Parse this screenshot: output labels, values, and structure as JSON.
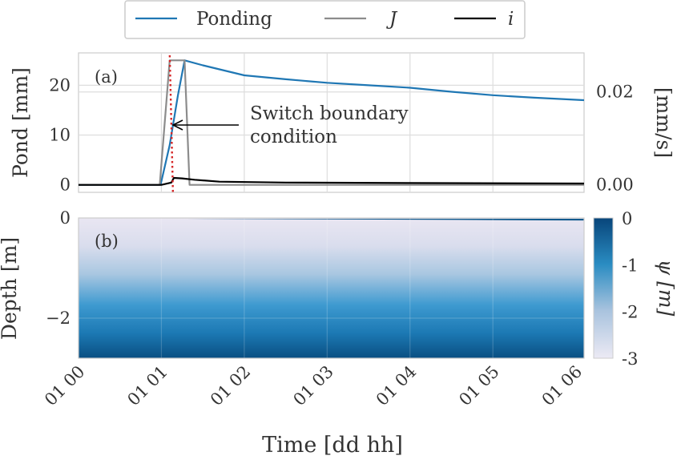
{
  "chart_data": [
    {
      "panel": "(a)",
      "type": "line",
      "ylabel": "Pond [mm]",
      "ylabel_right": "[mm/s]",
      "ylim": [
        -1.5,
        26.5
      ],
      "y2lim": [
        -0.0016,
        0.0284
      ],
      "yticks": [
        0,
        10,
        20
      ],
      "y2ticks": [
        "0.00",
        "0.02"
      ],
      "grid": true,
      "legend": {
        "placement": "top-center"
      },
      "annotation": {
        "line1": "Switch boundary",
        "line2": "condition",
        "x": 1.2,
        "y": 12
      },
      "switch_time_hours": 1.12,
      "series": [
        {
          "name": "Ponding",
          "color": "#1f77b4",
          "axis": "left",
          "x": [
            0.0,
            0.99,
            1.1,
            1.2,
            1.28,
            1.5,
            2.0,
            2.5,
            3.0,
            3.5,
            4.0,
            4.5,
            5.0,
            5.5,
            6.1
          ],
          "y": [
            0,
            0,
            8,
            18,
            25,
            24,
            22,
            21.2,
            20.5,
            20,
            19.5,
            18.7,
            18.0,
            17.5,
            17.0
          ]
        },
        {
          "name": "J",
          "color": "#8c8c8c",
          "axis": "left",
          "x": [
            0.0,
            0.98,
            1.1,
            1.22,
            1.28,
            1.34,
            6.1
          ],
          "y": [
            0,
            0,
            25,
            25,
            25,
            0,
            0
          ]
        },
        {
          "name": "i",
          "color": "#000000",
          "axis": "right",
          "x": [
            0.0,
            1.0,
            1.12,
            1.15,
            1.25,
            1.4,
            1.7,
            2.5,
            4.0,
            6.1
          ],
          "y": [
            0,
            0,
            0.0005,
            0.0015,
            0.0014,
            0.0011,
            0.0007,
            0.0005,
            0.0004,
            0.0003
          ]
        }
      ]
    },
    {
      "panel": "(b)",
      "type": "heatmap",
      "ylabel": "Depth [m]",
      "xlabel": "Time [dd hh]",
      "ylim": [
        -2.8,
        0
      ],
      "yticks": [
        0,
        -2
      ],
      "xticks": [
        "01 00",
        "01 01",
        "01 02",
        "01 03",
        "01 04",
        "01 05",
        "01 06"
      ],
      "xlim_hours": [
        0,
        6.1
      ],
      "colorbar": {
        "label": "ψ [m]",
        "ticks": [
          "0",
          "-1",
          "-2",
          "-3"
        ],
        "range": [
          -3,
          0
        ]
      },
      "rows_top_to_bottom": {
        "depth": [
          0,
          -0.3,
          -0.6,
          -1.0,
          -1.4,
          -1.8,
          -2.2,
          -2.5,
          -2.8
        ],
        "psi": [
          -2.95,
          -2.85,
          -2.6,
          -2.2,
          -1.8,
          -1.4,
          -1.0,
          -0.7,
          -0.35
        ]
      },
      "surface_wetting": {
        "start_hour": 1.3,
        "max_depth_m": -0.05,
        "psi": -0.1
      }
    }
  ]
}
